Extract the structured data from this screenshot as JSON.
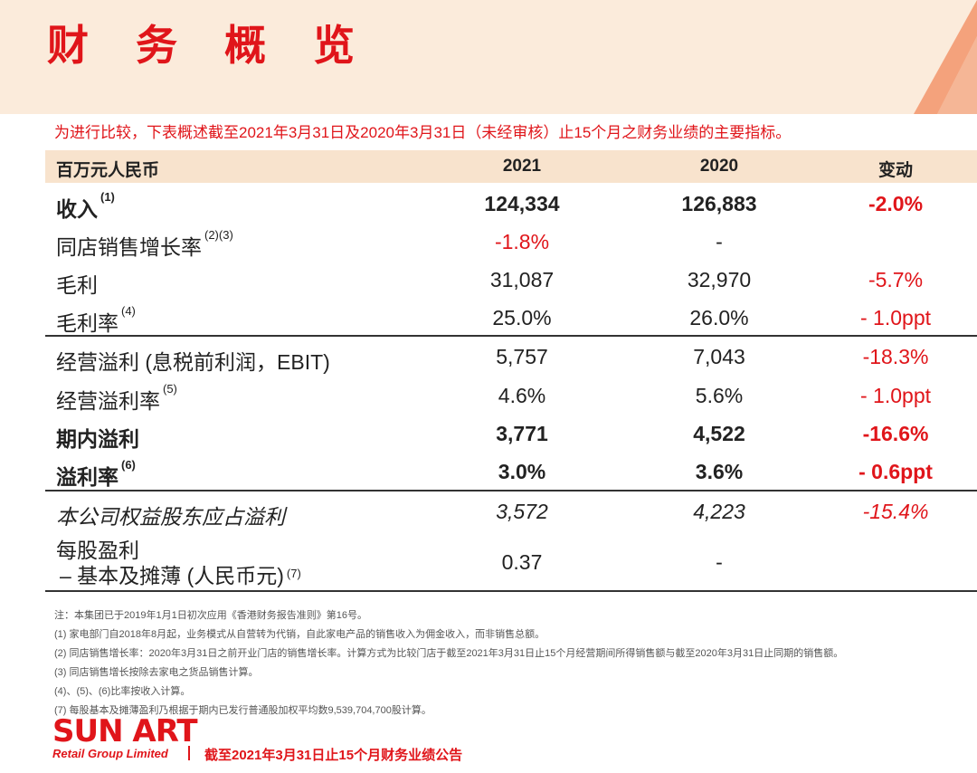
{
  "title": "财 务 概 览",
  "subtitle": "为进行比较，下表概述截至2021年3月31日及2020年3月31日（未经审核）止15个月之财务业绩的主要指标。",
  "table": {
    "headers": [
      "百万元人民币",
      "2021",
      "2020",
      "变动"
    ],
    "rows": [
      {
        "label": "收入",
        "fn": "(1)",
        "v2021": "124,334",
        "v2020": "126,883",
        "change": "-2.0%"
      },
      {
        "label": "同店销售增长率",
        "fn": "(2)(3)",
        "v2021": "-1.8%",
        "v2020": "-",
        "change": ""
      },
      {
        "label": "毛利",
        "fn": "",
        "v2021": "31,087",
        "v2020": "32,970",
        "change": "-5.7%"
      },
      {
        "label": "毛利率",
        "fn": "(4)",
        "v2021": "25.0%",
        "v2020": "26.0%",
        "change": "- 1.0ppt"
      },
      {
        "label": "经营溢利 (息税前利润，EBIT)",
        "fn": "",
        "v2021": "5,757",
        "v2020": "7,043",
        "change": "-18.3%"
      },
      {
        "label": "经营溢利率",
        "fn": "(5)",
        "v2021": "4.6%",
        "v2020": "5.6%",
        "change": "- 1.0ppt"
      },
      {
        "label": "期内溢利",
        "fn": "",
        "v2021": "3,771",
        "v2020": "4,522",
        "change": "-16.6%"
      },
      {
        "label": "溢利率",
        "fn": "(6)",
        "v2021": "3.0%",
        "v2020": "3.6%",
        "change": "- 0.6ppt"
      },
      {
        "label": "本公司权益股东应占溢利",
        "fn": "",
        "v2021": "3,572",
        "v2020": "4,223",
        "change": "-15.4%"
      }
    ],
    "eps": {
      "label_line1": "每股盈利",
      "label_line2": "– 基本及摊薄 (人民币元)",
      "fn": "(7)",
      "v2021": "0.37",
      "v2020": "-",
      "change": ""
    }
  },
  "notes": [
    "注：本集团已于2019年1月1日初次应用《香港财务报告准则》第16号。",
    "(1) 家电部门自2018年8月起，业务模式从自营转为代销，自此家电产品的销售收入为佣金收入，而非销售总额。",
    "(2) 同店销售增长率：2020年3月31日之前开业门店的销售增长率。计算方式为比较门店于截至2021年3月31日止15个月经营期间所得销售额与截至2020年3月31日止同期的销售额。",
    "(3) 同店销售增长按除去家电之货品销售计算。",
    "(4)、(5)、(6)比率按收入计算。",
    "(7) 每股基本及摊薄盈利乃根据于期内已发行普通股加权平均数9,539,704,700股计算。"
  ],
  "logo": {
    "main": "SUN ART",
    "sub": "Retail Group Limited"
  },
  "footer": "截至2021年3月31日止15个月财务业绩公告",
  "colors": {
    "accent": "#e0151a",
    "header_bg": "#fbebdb",
    "table_header_bg": "#f8e3cd",
    "stripe": "#f08a5d"
  }
}
